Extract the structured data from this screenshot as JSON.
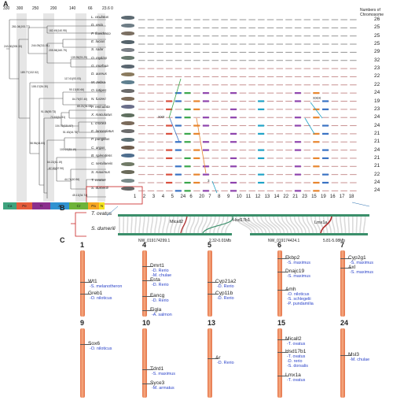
{
  "panelA": {
    "letter": "A",
    "time_ticks": [
      "330",
      "300",
      "250",
      "200",
      "140",
      "66",
      "23.6 0"
    ],
    "eras": [
      {
        "label": "Ca",
        "color": "#3ea37e"
      },
      {
        "label": "Pe",
        "color": "#e45b3a"
      },
      {
        "label": "Tr",
        "color": "#8b2f8d"
      },
      {
        "label": "Ju",
        "color": "#2f92d1"
      },
      {
        "label": "Cr",
        "color": "#6db339"
      },
      {
        "label": "Pa",
        "color": "#f6a623"
      },
      {
        "label": "N",
        "color": "#f4e11d"
      }
    ],
    "node_labels": [
      "281.08(193.77)",
      "243.30(208.33)",
      "244.09(211.01)",
      "182.49(140.95)",
      "205.58(160.79)",
      "189.77(132.52)",
      "139.95(93.29)",
      "117.61(93.03)",
      "108.17(84.30)",
      "90.13(60.66)",
      "84.79(57.40)",
      "65.21(34.08)",
      "91.08(59.73)",
      "73.63(61.51)",
      "104.73(131.57)",
      "51.63(44.76)",
      "58.96(44.83)",
      "101.07(83.19)",
      "64.22(41.19)",
      "87.92(67.90)",
      "44.74(40.56)",
      "45.13(34.74)"
    ],
    "species": [
      "L. oculatus",
      "D. rerio",
      "P. fluvidraco",
      "E. lucius",
      "S. salar",
      "O. mykiss",
      "G. morhua",
      "D. aureus",
      "M. zebra",
      "O. latipes",
      "N. furzeri",
      "P. reticulata",
      "X. maculatus",
      "L. crocea",
      "E. lanceolatus",
      "P. pungitius",
      "C. argus",
      "B. splendens",
      "C. semilaevis",
      "S. maximus",
      "T. ovatus",
      "S. dumerili"
    ],
    "chromosome_numbers": [
      "26",
      "25",
      "25",
      "25",
      "29",
      "32",
      "23",
      "22",
      "22",
      "24",
      "19",
      "23",
      "24",
      "24",
      "21",
      "21",
      "24",
      "21",
      "21",
      "22",
      "24",
      "24"
    ],
    "chromosome_header_1": "Numbers of",
    "chromosome_header_2": "Chromosome",
    "axis_numbers": [
      "1",
      "2",
      "3",
      "4",
      "5",
      "24",
      "6",
      "20",
      "7",
      "8",
      "9",
      "10",
      "11",
      "12",
      "13",
      "14",
      "22",
      "21",
      "23",
      "15",
      "19",
      "16",
      "17",
      "18"
    ],
    "block_label_1": "XXII",
    "block_label_2": "XXIX",
    "block_label_3": "3"
  },
  "panelB": {
    "letter": "B",
    "top_species": "T. ovatus",
    "bottom_species": "S. dumerili",
    "gene_labels": [
      "Micall2",
      "Hsd17b1",
      "Lmx1a"
    ],
    "bottom_labels": [
      "NW_019174299.1",
      "2.32-0.01Mb",
      "NW_019174424.1",
      "5.81-5.08Mb"
    ]
  },
  "panelC": {
    "letter": "C",
    "chromosomes": [
      {
        "num": "1",
        "genes": [
          {
            "name": "Wt1",
            "refs": [
              "-S. melanotheron"
            ]
          },
          {
            "name": "Greb1",
            "refs": [
              "-O. niloticus"
            ]
          }
        ]
      },
      {
        "num": "4",
        "genes": [
          {
            "name": "Dmrt1",
            "refs": [
              "-D. Rerio",
              "-M. chulae"
            ]
          },
          {
            "name": "Fsta",
            "refs": [
              "-D. Rerio"
            ]
          },
          {
            "name": "Fancg",
            "refs": [
              "-D. Rerio"
            ]
          },
          {
            "name": "Figla",
            "refs": [
              "-A. salmon"
            ]
          }
        ]
      },
      {
        "num": "5",
        "genes": [
          {
            "name": "Cyp21a2",
            "refs": [
              "-D. Rerio"
            ]
          },
          {
            "name": "Cyp11b",
            "refs": [
              "-D. Rerio"
            ]
          }
        ]
      },
      {
        "num": "6",
        "genes": [
          {
            "name": "Fkbp2",
            "refs": [
              "-S. maximus"
            ]
          },
          {
            "name": "Dnajc19",
            "refs": [
              "-S. maximus"
            ]
          },
          {
            "name": "Amh",
            "refs": [
              "-O. niloticus",
              "-S. schlegelii",
              "-P. pundamilia"
            ]
          }
        ]
      },
      {
        "num": "7",
        "genes": [
          {
            "name": "Cyp2g1",
            "refs": [
              "-S. maximus"
            ]
          },
          {
            "name": "Axl",
            "refs": [
              "-S. maximus"
            ]
          }
        ]
      },
      {
        "num": "9",
        "genes": [
          {
            "name": "Sox6",
            "refs": [
              "-O. niloticus"
            ]
          }
        ]
      },
      {
        "num": "10",
        "genes": [
          {
            "name": "Tdrd1",
            "refs": [
              "-S. maximus"
            ]
          },
          {
            "name": "Syce3",
            "refs": [
              "-M. armatus"
            ]
          }
        ]
      },
      {
        "num": "13",
        "genes": [
          {
            "name": "Ar",
            "refs": [
              "-D. Rerio"
            ]
          }
        ]
      },
      {
        "num": "15",
        "genes": [
          {
            "name": "Micall2",
            "refs": [
              "-T. ovatus"
            ]
          },
          {
            "name": "Hsd17b1",
            "refs": [
              "-T. ovatus",
              "-D. rerio",
              "-S. dorsalis"
            ]
          },
          {
            "name": "Lmx1a",
            "refs": [
              "-T. ovatus"
            ]
          }
        ]
      },
      {
        "num": "24",
        "genes": [
          {
            "name": "Msl3",
            "refs": [
              "-M. chulae"
            ]
          }
        ]
      }
    ]
  }
}
